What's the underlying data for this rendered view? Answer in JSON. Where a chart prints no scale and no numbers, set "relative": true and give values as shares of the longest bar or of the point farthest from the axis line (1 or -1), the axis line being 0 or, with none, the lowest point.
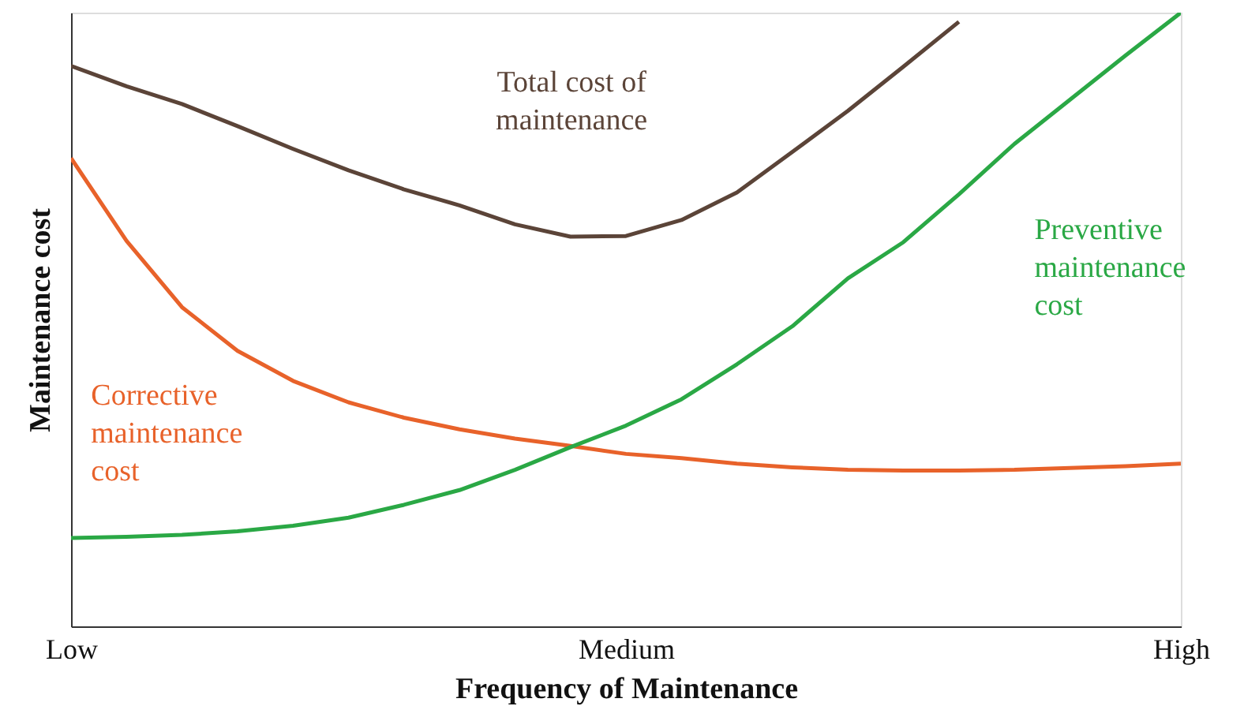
{
  "chart_data": {
    "type": "line",
    "relative": true,
    "xlabel": "Frequency of Maintenance",
    "ylabel": "Maintenance cost",
    "categories": [
      "Low",
      null,
      null,
      null,
      null,
      null,
      null,
      null,
      null,
      null,
      "Medium",
      null,
      null,
      null,
      null,
      null,
      null,
      null,
      null,
      null,
      "High"
    ],
    "grid": false,
    "marker": "none",
    "line_style": "solid",
    "series": [
      {
        "name": "Total cost of\nmaintenance",
        "color": "#5b4438",
        "values": [
          0.913,
          0.88,
          0.851,
          0.815,
          0.778,
          0.743,
          0.712,
          0.686,
          0.655,
          0.635,
          0.636,
          0.662,
          0.707,
          0.773,
          0.84,
          0.912,
          0.985,
          null,
          null,
          null,
          null
        ]
      },
      {
        "name": "Corrective\nmaintenance\ncost",
        "color": "#e8622a",
        "values": [
          0.763,
          0.628,
          0.52,
          0.449,
          0.4,
          0.365,
          0.34,
          0.321,
          0.306,
          0.294,
          0.281,
          0.274,
          0.265,
          0.259,
          0.255,
          0.254,
          0.254,
          0.255,
          0.258,
          0.261,
          0.265
        ]
      },
      {
        "name": "Preventive\nmaintenance\ncost",
        "color": "#2aa845",
        "values": [
          0.144,
          0.146,
          0.149,
          0.155,
          0.164,
          0.177,
          0.198,
          0.222,
          0.255,
          0.292,
          0.327,
          0.37,
          0.427,
          0.489,
          0.567,
          0.626,
          0.704,
          0.786,
          0.858,
          0.93,
          1.0
        ]
      }
    ]
  }
}
